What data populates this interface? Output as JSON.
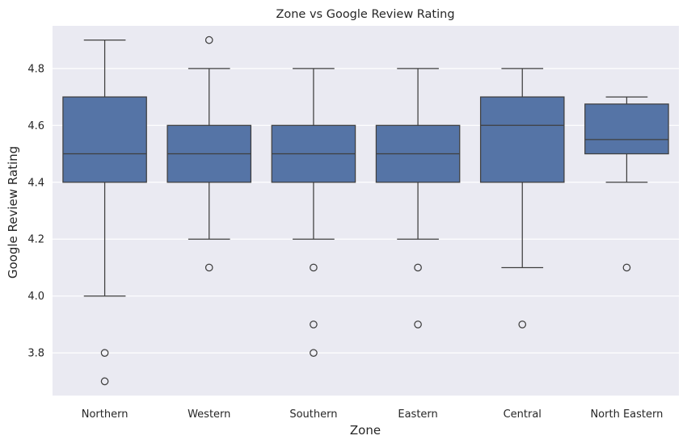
{
  "chart_data": {
    "type": "box",
    "title": "Zone vs Google Review Rating",
    "xlabel": "Zone",
    "ylabel": "Google Review Rating",
    "ylim": [
      3.65,
      4.95
    ],
    "yticks": [
      "3.8",
      "4.0",
      "4.2",
      "4.4",
      "4.6",
      "4.8"
    ],
    "grid": true,
    "colors": {
      "box_fill": "#5574a6",
      "line": "#3f3f3f",
      "background": "#eaeaf2",
      "grid": "#ffffff"
    },
    "categories": [
      "Northern",
      "Western",
      "Southern",
      "Eastern",
      "Central",
      "North Eastern"
    ],
    "boxes": [
      {
        "whisker_low": 4.0,
        "q1": 4.4,
        "median": 4.5,
        "q3": 4.7,
        "whisker_high": 4.9,
        "outliers": [
          3.8,
          3.7
        ]
      },
      {
        "whisker_low": 4.2,
        "q1": 4.4,
        "median": 4.5,
        "q3": 4.6,
        "whisker_high": 4.8,
        "outliers": [
          4.9,
          4.1
        ]
      },
      {
        "whisker_low": 4.2,
        "q1": 4.4,
        "median": 4.5,
        "q3": 4.6,
        "whisker_high": 4.8,
        "outliers": [
          4.1,
          3.9,
          3.8
        ]
      },
      {
        "whisker_low": 4.2,
        "q1": 4.4,
        "median": 4.5,
        "q3": 4.6,
        "whisker_high": 4.8,
        "outliers": [
          4.1,
          3.9
        ]
      },
      {
        "whisker_low": 4.1,
        "q1": 4.4,
        "median": 4.6,
        "q3": 4.7,
        "whisker_high": 4.8,
        "outliers": [
          3.9
        ]
      },
      {
        "whisker_low": 4.4,
        "q1": 4.5,
        "median": 4.55,
        "q3": 4.675,
        "whisker_high": 4.7,
        "outliers": [
          4.1
        ]
      }
    ]
  }
}
